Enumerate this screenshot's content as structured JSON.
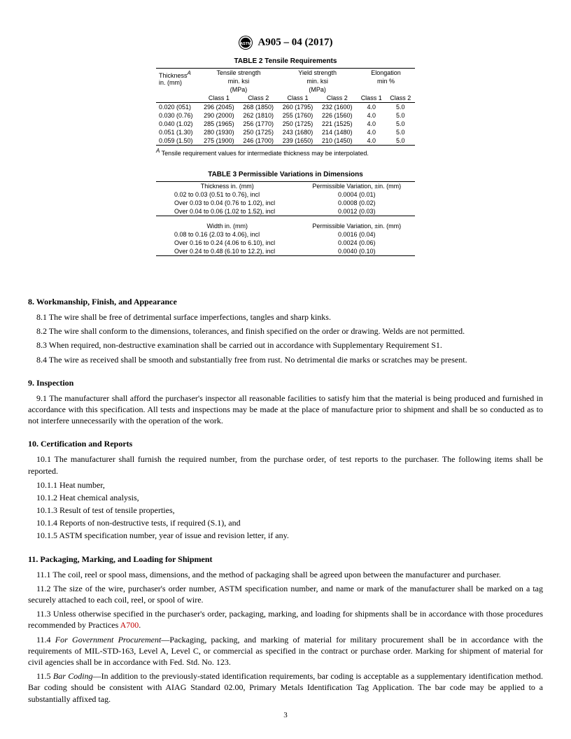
{
  "header": {
    "designation": "A905 – 04 (2017)"
  },
  "table2": {
    "title": "TABLE 2 Tensile Requirements",
    "cols": {
      "thickness": "Thickness",
      "thickness_unit": "in. (mm)",
      "tensile": "Tensile strength",
      "tensile_unit1": "min. ksi",
      "tensile_unit2": "(MPa)",
      "yield": "Yield strength",
      "yield_unit1": "min. ksi",
      "yield_unit2": "(MPa)",
      "elong": "Elongation",
      "elong_unit": "min %",
      "class1": "Class 1",
      "class2": "Class 2",
      "sup": "A"
    },
    "rows": [
      {
        "th": "0.020 (051)",
        "tc1": "296 (2045)",
        "tc2": "268 (1850)",
        "yc1": "260 (1795)",
        "yc2": "232 (1600)",
        "ec1": "4.0",
        "ec2": "5.0"
      },
      {
        "th": "0.030 (0.76)",
        "tc1": "290 (2000)",
        "tc2": "262 (1810)",
        "yc1": "255 (1760)",
        "yc2": "226 (1560)",
        "ec1": "4.0",
        "ec2": "5.0"
      },
      {
        "th": "0.040 (1.02)",
        "tc1": "285 (1965)",
        "tc2": "256 (1770)",
        "yc1": "250 (1725)",
        "yc2": "221 (1525)",
        "ec1": "4.0",
        "ec2": "5.0"
      },
      {
        "th": "0.051 (1.30)",
        "tc1": "280 (1930)",
        "tc2": "250 (1725)",
        "yc1": "243 (1680)",
        "yc2": "214 (1480)",
        "ec1": "4.0",
        "ec2": "5.0"
      },
      {
        "th": "0.059 (1.50)",
        "tc1": "275 (1900)",
        "tc2": "246 (1700)",
        "yc1": "239 (1650)",
        "yc2": "210 (1450)",
        "ec1": "4.0",
        "ec2": "5.0"
      }
    ],
    "footnote_sup": "A",
    "footnote": " Tensile requirement values for intermediate thickness may be interpolated."
  },
  "table3": {
    "title": "TABLE 3 Permissible Variations in Dimensions",
    "h1a": "Thickness in. (mm)",
    "h1b": "Permissible Variation, ±in. (mm)",
    "rowsA": [
      {
        "a": "0.02 to 0.03 (0.51 to 0.76), incl",
        "b": "0.0004 (0.01)"
      },
      {
        "a": "Over 0.03 to 0.04 (0.76 to 1.02), incl",
        "b": "0.0008 (0.02)"
      },
      {
        "a": "Over 0.04 to 0.06 (1.02 to 1.52), incl",
        "b": "0.0012 (0.03)"
      }
    ],
    "h2a": "Width in. (mm)",
    "h2b": "Permissible Variation, ±in. (mm)",
    "rowsB": [
      {
        "a": "0.08 to 0.16 (2.03 to 4.06), incl",
        "b": "0.0016 (0.04)"
      },
      {
        "a": "Over 0.16 to 0.24 (4.06 to 6.10), incl",
        "b": "0.0024 (0.06)"
      },
      {
        "a": "Over 0.24 to 0.48 (6.10 to 12.2), incl",
        "b": "0.0040 (0.10)"
      }
    ]
  },
  "sec8": {
    "title": "8.  Workmanship, Finish, and Appearance",
    "p1": "8.1  The wire shall be free of detrimental surface imperfections, tangles and sharp kinks.",
    "p2": "8.2  The wire shall conform to the dimensions, tolerances, and finish specified on the order or drawing. Welds are not permitted.",
    "p3": "8.3  When required, non-destructive examination shall be carried out in accordance with Supplementary Requirement S1.",
    "p4": "8.4  The wire as received shall be smooth and substantially free from rust. No detrimental die marks or scratches may be present."
  },
  "sec9": {
    "title": "9.  Inspection",
    "p1": "9.1  The manufacturer shall afford the purchaser's inspector all reasonable facilities to satisfy him that the material is being produced and furnished in accordance with this specification. All tests and inspections may be made at the place of manufacture prior to shipment and shall be so conducted as to not interfere unnecessarily with the operation of the work."
  },
  "sec10": {
    "title": "10.  Certification and Reports",
    "p1": "10.1  The manufacturer shall furnish the required number, from the purchase order, of test reports to the purchaser. The following items shall be reported.",
    "s1": "10.1.1  Heat number,",
    "s2": "10.1.2  Heat chemical analysis,",
    "s3": "10.1.3  Result of test of tensile properties,",
    "s4": "10.1.4  Reports of non-destructive tests, if required (S.1), and",
    "s5": "10.1.5  ASTM specification number, year of issue and revision letter, if any."
  },
  "sec11": {
    "title": "11.  Packaging, Marking, and Loading for Shipment",
    "p1": "11.1  The coil, reel or spool mass, dimensions, and the method of packaging shall be agreed upon between the manufacturer and purchaser.",
    "p2": "11.2  The size of the wire, purchaser's order number, ASTM specification number, and name or mark of the manufacturer shall be marked on a tag securely attached to each coil, reel, or spool of wire.",
    "p3a": "11.3  Unless otherwise specified in the purchaser's order, packaging, marking, and loading for shipments shall be in accordance with those procedures recommended by Practices ",
    "p3link": "A700",
    "p3b": ".",
    "p4_em": "For Government Procurement",
    "p4_lead": "11.4  ",
    "p4": "—Packaging, packing, and marking of material for military procurement shall be in accordance with the requirements of MIL-STD-163, Level A, Level C, or commercial as specified in the contract or purchase order. Marking for shipment of material for civil agencies shall be in accordance with Fed. Std. No. 123.",
    "p5_em": "Bar Coding",
    "p5_lead": "11.5  ",
    "p5": "—In addition to the previously-stated identification requirements, bar coding is acceptable as a supplementary identification method. Bar coding should be consistent with AIAG Standard 02.00, Primary Metals Identification Tag Application. The bar code may be applied to a substantially affixed tag."
  },
  "pagenum": "3"
}
